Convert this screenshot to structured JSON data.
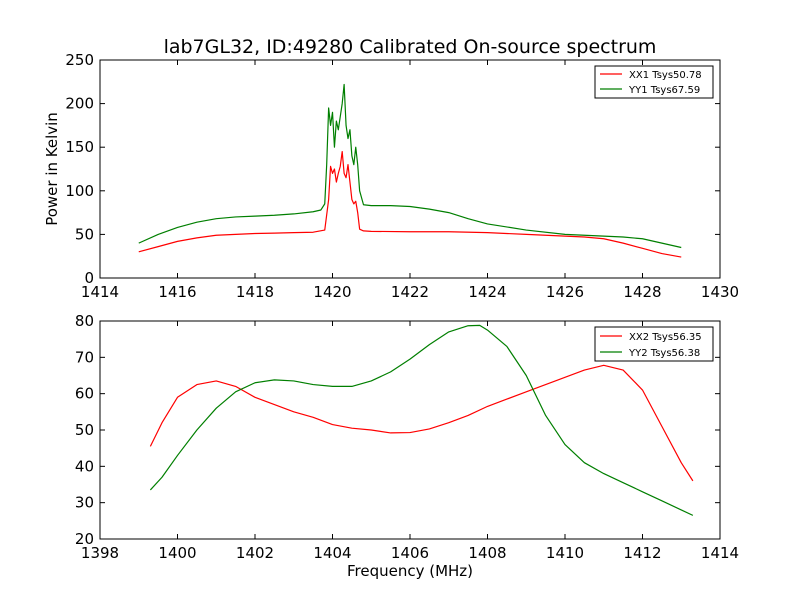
{
  "figure": {
    "title": "lab7GL32, ID:49280 Calibrated On-source spectrum"
  },
  "chart_data": [
    {
      "type": "line",
      "title": "lab7GL32, ID:49280 Calibrated On-source spectrum",
      "xlabel": "",
      "ylabel": "Power in Kelvin",
      "xlim": [
        1414,
        1430
      ],
      "ylim": [
        0,
        250
      ],
      "xticks": [
        1414,
        1416,
        1418,
        1420,
        1422,
        1424,
        1426,
        1428,
        1430
      ],
      "yticks": [
        0,
        50,
        100,
        150,
        200,
        250
      ],
      "grid": false,
      "legend_position": "top-right",
      "series": [
        {
          "name": "XX1 Tsys50.78",
          "color": "#ff0000",
          "x": [
            1415.0,
            1415.5,
            1416.0,
            1416.5,
            1417.0,
            1417.5,
            1418.0,
            1418.5,
            1419.0,
            1419.5,
            1419.8,
            1419.9,
            1419.95,
            1420.0,
            1420.05,
            1420.1,
            1420.15,
            1420.2,
            1420.25,
            1420.3,
            1420.35,
            1420.4,
            1420.45,
            1420.5,
            1420.55,
            1420.6,
            1420.65,
            1420.7,
            1420.8,
            1421.0,
            1422.0,
            1423.0,
            1424.0,
            1425.0,
            1426.0,
            1426.5,
            1427.0,
            1427.5,
            1428.0,
            1428.5,
            1429.0
          ],
          "values": [
            30,
            36,
            42,
            46,
            49,
            50,
            51,
            51.5,
            52,
            52.5,
            55,
            90,
            128,
            120,
            125,
            110,
            120,
            128,
            145,
            120,
            115,
            130,
            110,
            90,
            85,
            88,
            75,
            56,
            54,
            53.5,
            53,
            53,
            52,
            50,
            48,
            47,
            45,
            40,
            34,
            28,
            24
          ]
        },
        {
          "name": "YY1 Tsys67.59",
          "color": "#007f00",
          "x": [
            1415.0,
            1415.5,
            1416.0,
            1416.5,
            1417.0,
            1417.5,
            1418.0,
            1418.5,
            1419.0,
            1419.5,
            1419.7,
            1419.8,
            1419.85,
            1419.9,
            1419.95,
            1420.0,
            1420.05,
            1420.1,
            1420.15,
            1420.2,
            1420.25,
            1420.3,
            1420.35,
            1420.4,
            1420.45,
            1420.5,
            1420.55,
            1420.6,
            1420.65,
            1420.7,
            1420.8,
            1421.0,
            1421.5,
            1422.0,
            1422.5,
            1423.0,
            1423.5,
            1424.0,
            1425.0,
            1426.0,
            1427.0,
            1427.5,
            1428.0,
            1428.5,
            1429.0
          ],
          "values": [
            40,
            50,
            58,
            64,
            68,
            70,
            71,
            72,
            73.5,
            76,
            78,
            85,
            130,
            195,
            175,
            190,
            150,
            180,
            170,
            185,
            200,
            222,
            175,
            160,
            170,
            140,
            130,
            150,
            130,
            100,
            84,
            83,
            83,
            82,
            79,
            75,
            68,
            62,
            55,
            50,
            48,
            47,
            45,
            40,
            35
          ]
        }
      ]
    },
    {
      "type": "line",
      "title": "",
      "xlabel": "Frequency (MHz)",
      "ylabel": "",
      "xlim": [
        1398,
        1414
      ],
      "ylim": [
        20,
        80
      ],
      "xticks": [
        1398,
        1400,
        1402,
        1404,
        1406,
        1408,
        1410,
        1412,
        1414
      ],
      "yticks": [
        20,
        30,
        40,
        50,
        60,
        70,
        80
      ],
      "grid": false,
      "legend_position": "top-right",
      "series": [
        {
          "name": "XX2 Tsys56.35",
          "color": "#ff0000",
          "x": [
            1399.3,
            1399.6,
            1400.0,
            1400.5,
            1401.0,
            1401.5,
            1402.0,
            1402.5,
            1403.0,
            1403.5,
            1404.0,
            1404.5,
            1405.0,
            1405.5,
            1406.0,
            1406.5,
            1407.0,
            1407.5,
            1408.0,
            1408.5,
            1409.0,
            1409.5,
            1410.0,
            1410.5,
            1411.0,
            1411.5,
            1412.0,
            1412.5,
            1413.0,
            1413.3
          ],
          "values": [
            45.5,
            52,
            59,
            62.5,
            63.5,
            62,
            59,
            57,
            55,
            53.5,
            51.5,
            50.5,
            50,
            49.2,
            49.3,
            50.3,
            52,
            54,
            56.5,
            58.5,
            60.5,
            62.5,
            64.5,
            66.5,
            67.8,
            66.5,
            61,
            51,
            41,
            36
          ]
        },
        {
          "name": "YY2 Tsys56.38",
          "color": "#007f00",
          "x": [
            1399.3,
            1399.6,
            1400.0,
            1400.5,
            1401.0,
            1401.5,
            1402.0,
            1402.5,
            1403.0,
            1403.5,
            1404.0,
            1404.5,
            1405.0,
            1405.5,
            1406.0,
            1406.5,
            1407.0,
            1407.5,
            1407.8,
            1408.0,
            1408.5,
            1409.0,
            1409.5,
            1410.0,
            1410.5,
            1411.0,
            1411.5,
            1412.0,
            1412.5,
            1413.0,
            1413.3
          ],
          "values": [
            33.5,
            37,
            43,
            50,
            56,
            60.5,
            63,
            63.8,
            63.5,
            62.5,
            62,
            62,
            63.5,
            66,
            69.5,
            73.5,
            77,
            78.7,
            78.8,
            77.5,
            73,
            65,
            54,
            46,
            41,
            38,
            35.5,
            33,
            30.5,
            28,
            26.5
          ]
        }
      ]
    }
  ]
}
